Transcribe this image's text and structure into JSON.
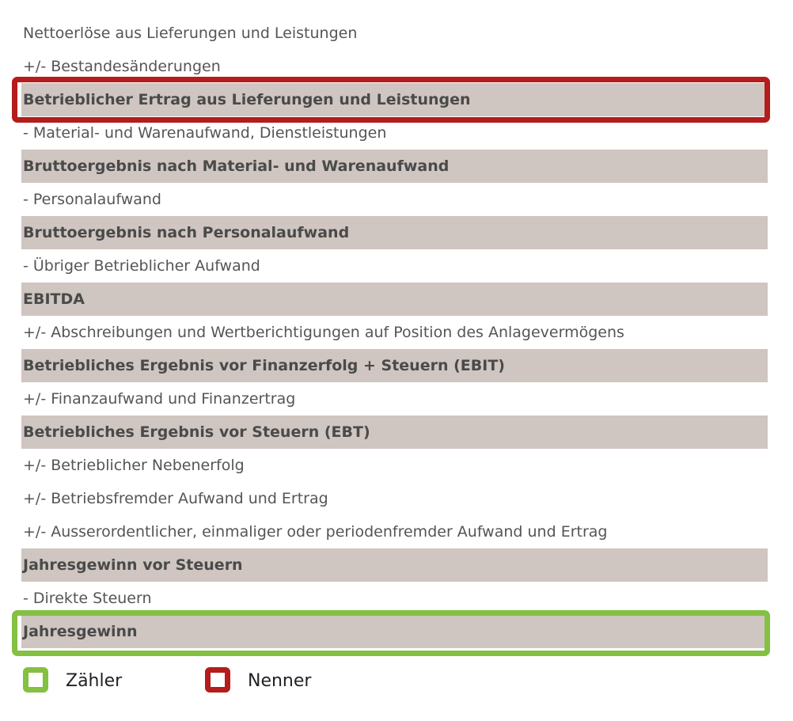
{
  "rows": [
    "Nettoerlöse aus Lieferungen und Leistungen",
    "+/- Bestandesänderungen",
    "Betrieblicher Ertrag aus Lieferungen und Leistungen",
    "- Material- und Warenaufwand, Dienstleistungen",
    "Bruttoergebnis nach Material- und Warenaufwand",
    "- Personalaufwand",
    "Bruttoergebnis nach Personalaufwand",
    "- Übriger Betrieblicher Aufwand",
    "EBITDA",
    "+/- Abschreibungen und Wertberichtigungen auf Position des Anlagevermögens",
    "Betriebliches Ergebnis vor Finanzerfolg + Steuern (EBIT)",
    "+/- Finanzaufwand und Finanzertrag",
    "Betriebliches Ergebnis vor Steuern (EBT)",
    "+/- Betrieblicher Nebenerfolg",
    "+/- Betriebsfremder Aufwand und Ertrag",
    "+/- Ausserordentlicher, einmaliger oder periodenfremder Aufwand und Ertrag",
    "Jahresgewinn vor Steuern",
    "- Direkte Steuern",
    "Jahresgewinn"
  ],
  "legend": {
    "numerator": "Zähler",
    "denominator": "Nenner"
  }
}
